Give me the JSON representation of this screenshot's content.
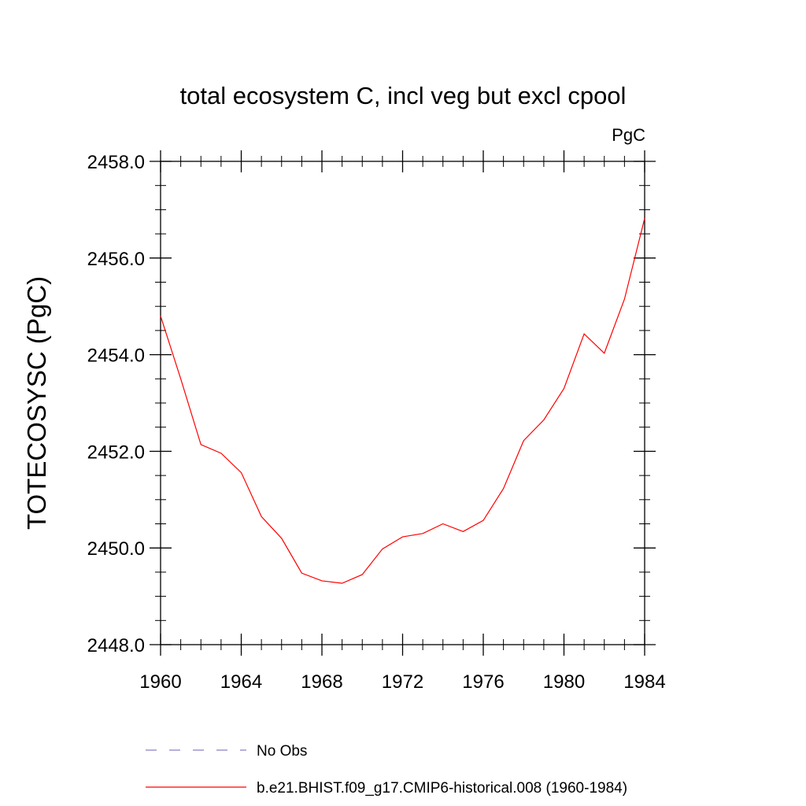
{
  "chart_data": {
    "type": "line",
    "title": "total ecosystem C, incl veg but excl cpool",
    "units_label": "PgC",
    "xlabel": "",
    "ylabel": "TOTECOSYSC  (PgC)",
    "xlim": [
      1960,
      1984
    ],
    "ylim": [
      2448.0,
      2458.0
    ],
    "x_ticks": [
      1960,
      1964,
      1968,
      1972,
      1976,
      1980,
      1984
    ],
    "x_tick_labels": [
      "1960",
      "1964",
      "1968",
      "1972",
      "1976",
      "1980",
      "1984"
    ],
    "y_ticks": [
      2448.0,
      2450.0,
      2452.0,
      2454.0,
      2456.0,
      2458.0
    ],
    "y_tick_labels": [
      "2448.0",
      "2450.0",
      "2452.0",
      "2454.0",
      "2456.0",
      "2458.0"
    ],
    "grid": false,
    "legend_position": "bottom",
    "series": [
      {
        "name": "b.e21.BHIST.f09_g17.CMIP6-historical.008 (1960-1984)",
        "color": "#ff0000",
        "style": "solid",
        "x": [
          1960,
          1961,
          1962,
          1963,
          1964,
          1965,
          1966,
          1967,
          1968,
          1969,
          1970,
          1971,
          1972,
          1973,
          1974,
          1975,
          1976,
          1977,
          1978,
          1979,
          1980,
          1981,
          1982,
          1983,
          1984
        ],
        "y": [
          2454.8,
          2453.5,
          2452.14,
          2451.96,
          2451.56,
          2450.65,
          2450.2,
          2449.48,
          2449.32,
          2449.27,
          2449.45,
          2449.98,
          2450.23,
          2450.3,
          2450.5,
          2450.34,
          2450.57,
          2451.23,
          2452.22,
          2452.65,
          2453.3,
          2454.43,
          2454.03,
          2455.15,
          2456.82
        ]
      }
    ],
    "legend": [
      {
        "label": "No Obs",
        "color": "#8a7fc8",
        "style": "dashed"
      },
      {
        "label": "b.e21.BHIST.f09_g17.CMIP6-historical.008 (1960-1984)",
        "color": "#ff0000",
        "style": "solid"
      }
    ]
  }
}
